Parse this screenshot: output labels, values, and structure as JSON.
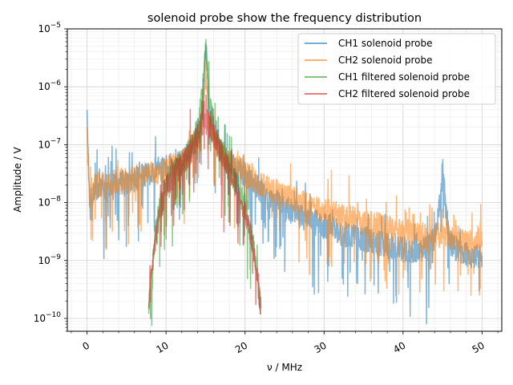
{
  "chart_data": {
    "type": "line",
    "title": "solenoid probe show the frequency distribution",
    "xlabel": "ν / MHz",
    "ylabel": "Amplitude / V",
    "xlim": [
      -2.5,
      52.5
    ],
    "ylim": [
      6e-11,
      1e-05
    ],
    "yscale": "log",
    "grid": true,
    "legend_position": "top-right",
    "x_ticks": [
      0,
      10,
      20,
      30,
      40,
      50
    ],
    "y_ticks": [
      "10^-10",
      "10^-9",
      "10^-8",
      "10^-7",
      "10^-6",
      "10^-5"
    ],
    "series": [
      {
        "name": "CH1 solenoid probe",
        "color": "#1f77b4",
        "x": [
          0,
          0.3,
          1,
          2,
          3,
          4,
          5,
          6,
          7,
          8,
          9,
          10,
          11,
          12,
          13,
          14,
          14.5,
          15,
          15.5,
          16,
          17,
          18,
          19,
          20,
          21,
          22,
          23,
          24,
          25,
          26,
          27,
          28,
          29,
          30,
          31,
          32,
          33,
          34,
          35,
          36,
          37,
          38,
          39,
          40,
          41,
          42,
          43,
          44,
          44.8,
          45,
          45.4,
          46,
          47,
          48,
          49,
          50
        ],
        "y": [
          4e-07,
          1.2e-08,
          1.8e-08,
          1.9e-08,
          2e-08,
          2.1e-08,
          2.2e-08,
          2.5e-08,
          3e-08,
          3.3e-08,
          3.7e-08,
          4e-08,
          4.5e-08,
          5e-08,
          7e-08,
          1.5e-07,
          3e-07,
          5.5e-06,
          3e-07,
          1.5e-07,
          7e-08,
          5e-08,
          4e-08,
          3e-08,
          2.2e-08,
          1.6e-08,
          1.2e-08,
          1e-08,
          8e-09,
          7e-09,
          6e-09,
          5e-09,
          4.5e-09,
          4e-09,
          3.5e-09,
          3e-09,
          2.8e-09,
          2.6e-09,
          2.4e-09,
          2.2e-09,
          2e-09,
          1.8e-09,
          1.7e-09,
          1.6e-09,
          1.5e-09,
          1.5e-09,
          1.6e-09,
          2.5e-09,
          1.5e-08,
          4e-08,
          8e-09,
          2e-09,
          1.5e-09,
          1.3e-09,
          1.2e-09,
          1.2e-09
        ]
      },
      {
        "name": "CH2 solenoid probe",
        "color": "#ff7f0e",
        "x": [
          0,
          0.3,
          1,
          2,
          3,
          4,
          5,
          6,
          7,
          8,
          9,
          10,
          11,
          12,
          13,
          14,
          14.5,
          15,
          15.5,
          16,
          17,
          18,
          19,
          20,
          21,
          22,
          23,
          24,
          25,
          26,
          27,
          28,
          29,
          30,
          31,
          32,
          33,
          34,
          35,
          36,
          37,
          38,
          39,
          40,
          41,
          42,
          43,
          44,
          45,
          46,
          47,
          48,
          49,
          50
        ],
        "y": [
          2e-07,
          1.4e-08,
          2e-08,
          2.1e-08,
          2.2e-08,
          2.3e-08,
          2.4e-08,
          2.6e-08,
          3e-08,
          3.2e-08,
          3.5e-08,
          3.8e-08,
          4.2e-08,
          5e-08,
          7e-08,
          1.4e-07,
          2.5e-07,
          2e-06,
          2.5e-07,
          1.4e-07,
          7e-08,
          5e-08,
          4e-08,
          3.2e-08,
          2.6e-08,
          2e-08,
          1.7e-08,
          1.5e-08,
          1.3e-08,
          1.2e-08,
          1e-08,
          9e-09,
          8e-09,
          7e-09,
          6.5e-09,
          6e-09,
          5.5e-09,
          5e-09,
          4.5e-09,
          4.2e-09,
          4e-09,
          3.7e-09,
          3.4e-09,
          3.2e-09,
          3e-09,
          2.8e-09,
          2.6e-09,
          2.5e-09,
          3e-09,
          2.6e-09,
          2.4e-09,
          2.3e-09,
          2.2e-09,
          2.2e-09
        ]
      },
      {
        "name": "CH1 filtered solenoid probe",
        "color": "#2ca02c",
        "x": [
          7.8,
          8,
          8.5,
          9,
          9.5,
          10,
          11,
          12,
          13,
          14,
          14.5,
          15,
          15.5,
          16,
          17,
          18,
          19,
          20,
          21,
          21.5,
          22
        ],
        "y": [
          1.2e-10,
          3e-10,
          2e-09,
          6e-09,
          1.2e-08,
          2e-08,
          3.5e-08,
          5e-08,
          8e-08,
          2e-07,
          6e-07,
          6e-06,
          6e-07,
          2e-07,
          8e-08,
          4e-08,
          2e-08,
          8e-09,
          2e-09,
          6e-10,
          1.2e-10
        ]
      },
      {
        "name": "CH2 filtered solenoid probe",
        "color": "#d62728",
        "x": [
          7.8,
          8,
          8.5,
          9,
          9.5,
          10,
          11,
          12,
          13,
          14,
          14.5,
          15,
          15.5,
          16,
          17,
          18,
          19,
          20,
          21,
          21.5,
          22
        ],
        "y": [
          1.5e-10,
          3e-10,
          1.8e-09,
          5e-09,
          1e-08,
          1.8e-08,
          3e-08,
          4.5e-08,
          7e-08,
          1.5e-07,
          2.2e-07,
          2.6e-07,
          2.2e-07,
          1.5e-07,
          7e-08,
          3.5e-08,
          1.8e-08,
          7e-09,
          1.8e-09,
          5e-10,
          1.5e-10
        ]
      }
    ]
  }
}
